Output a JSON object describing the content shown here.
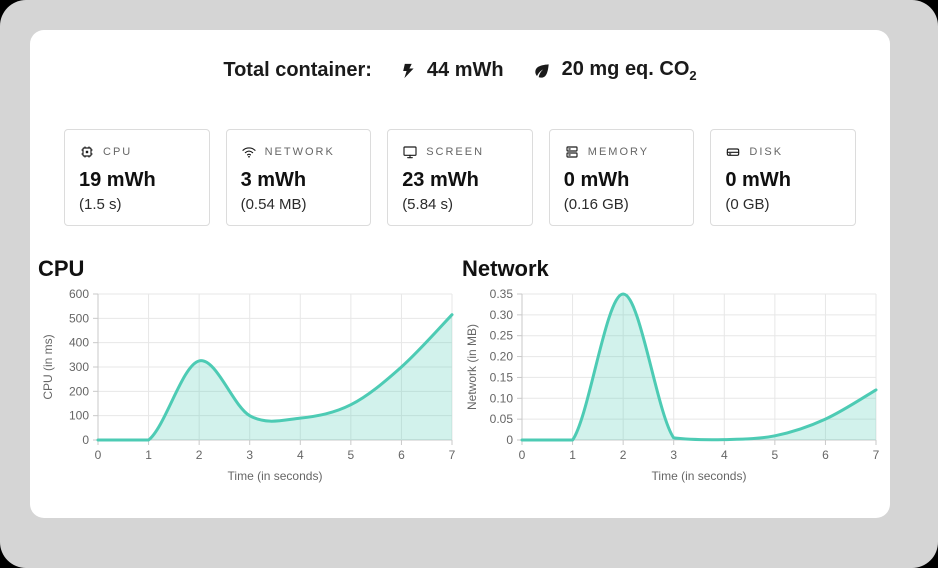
{
  "window": {
    "outer_background": "#000000",
    "frame_color": "#d5d5d5",
    "panel_color": "#ffffff"
  },
  "header": {
    "title": "Total container:",
    "energy": {
      "icon": "bolt-icon",
      "value": "44 mWh"
    },
    "co2": {
      "icon": "leaf-icon",
      "text": "20 mg eq. CO",
      "sub": "2"
    }
  },
  "cards": [
    {
      "icon": "cpu-chip-icon",
      "label": "CPU",
      "value": "19 mWh",
      "detail": "(1.5 s)"
    },
    {
      "icon": "wifi-icon",
      "label": "NETWORK",
      "value": "3 mWh",
      "detail": "(0.54 MB)"
    },
    {
      "icon": "monitor-icon",
      "label": "SCREEN",
      "value": "23 mWh",
      "detail": "(5.84 s)"
    },
    {
      "icon": "memory-icon",
      "label": "MEMORY",
      "value": "0 mWh",
      "detail": "(0.16 GB)"
    },
    {
      "icon": "disk-icon",
      "label": "DISK",
      "value": "0 mWh",
      "detail": "(0 GB)"
    }
  ],
  "chart_data": [
    {
      "type": "area",
      "title": "CPU",
      "x": [
        0,
        1,
        2,
        3,
        4,
        5,
        6,
        7
      ],
      "values": [
        0,
        0,
        325,
        100,
        90,
        145,
        300,
        515
      ],
      "xlabel": "Time (in seconds)",
      "ylabel": "CPU (in ms)",
      "ylim": [
        0,
        600
      ],
      "yticks": [
        0,
        100,
        200,
        300,
        400,
        500,
        600
      ],
      "ytick_labels": [
        "0",
        "100",
        "200",
        "300",
        "400",
        "500",
        "600"
      ],
      "xtick_labels": [
        "0",
        "1",
        "2",
        "3",
        "4",
        "5",
        "6",
        "7"
      ],
      "grid": true,
      "legend": false,
      "line_color": "#4dcbb4",
      "fill_color": "rgba(77,203,180,0.25)"
    },
    {
      "type": "area",
      "title": "Network",
      "x": [
        0,
        1,
        2,
        3,
        4,
        5,
        6,
        7
      ],
      "values": [
        0,
        0,
        0.35,
        0.005,
        0.001,
        0.01,
        0.05,
        0.12
      ],
      "xlabel": "Time (in seconds)",
      "ylabel": "Network (in MB)",
      "ylim": [
        0,
        0.35
      ],
      "yticks": [
        0,
        0.05,
        0.1,
        0.15,
        0.2,
        0.25,
        0.3,
        0.35
      ],
      "ytick_labels": [
        "0",
        "0.05",
        "0.10",
        "0.15",
        "0.20",
        "0.25",
        "0.30",
        "0.35"
      ],
      "xtick_labels": [
        "0",
        "1",
        "2",
        "3",
        "4",
        "5",
        "6",
        "7"
      ],
      "grid": true,
      "legend": false,
      "line_color": "#4dcbb4",
      "fill_color": "rgba(77,203,180,0.25)"
    }
  ]
}
